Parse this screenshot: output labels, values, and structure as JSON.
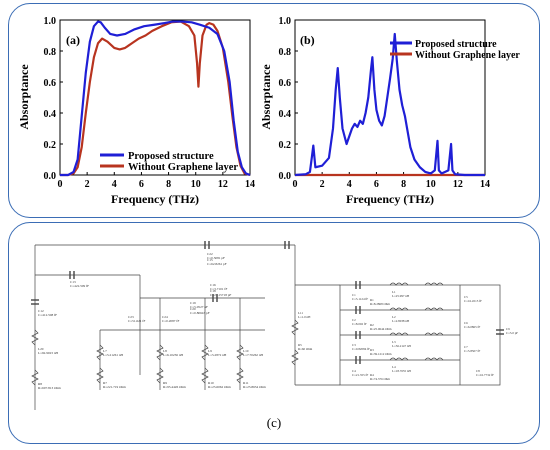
{
  "chart_data": [
    {
      "type": "line",
      "panel_label": "(a)",
      "xlabel": "Frequency (THz)",
      "ylabel": "Absorptance",
      "xlim": [
        0,
        14
      ],
      "ylim": [
        0,
        1.0
      ],
      "x_ticks": [
        "0",
        "2",
        "4",
        "6",
        "8",
        "10",
        "12",
        "14"
      ],
      "y_ticks": [
        "0.0",
        "0.2",
        "0.4",
        "0.6",
        "0.8",
        "1.0"
      ],
      "legend_position": "bottom-center",
      "series": [
        {
          "name": "Proposed structure",
          "color": "#1f1fd6",
          "x": [
            0,
            0.6,
            1.0,
            1.3,
            1.6,
            1.9,
            2.2,
            2.5,
            2.8,
            3.0,
            3.3,
            3.7,
            4.2,
            4.8,
            5.5,
            6.2,
            7.0,
            7.7,
            8.3,
            9.0,
            9.7,
            10.3,
            11.0,
            11.6,
            12.1,
            12.5,
            12.8,
            13.1,
            13.4,
            13.7,
            14.0
          ],
          "y": [
            0.0,
            0.0,
            0.02,
            0.1,
            0.38,
            0.66,
            0.86,
            0.96,
            0.99,
            0.985,
            0.95,
            0.91,
            0.9,
            0.91,
            0.94,
            0.96,
            0.97,
            0.98,
            0.99,
            0.99,
            0.985,
            0.97,
            0.95,
            0.91,
            0.8,
            0.6,
            0.35,
            0.15,
            0.05,
            0.01,
            0.0
          ]
        },
        {
          "name": "Without Graphene layer",
          "color": "#b8341f",
          "x": [
            0,
            0.6,
            1.0,
            1.3,
            1.6,
            1.9,
            2.2,
            2.5,
            2.8,
            3.1,
            3.5,
            4.0,
            4.4,
            4.8,
            5.3,
            5.8,
            6.3,
            6.8,
            7.5,
            8.2,
            8.9,
            9.5,
            9.9,
            10.1,
            10.2,
            10.3,
            10.5,
            10.8,
            11.0,
            11.3,
            11.6,
            12.0,
            12.4,
            12.7,
            13.0,
            13.3,
            13.6,
            14.0
          ],
          "y": [
            0.0,
            0.0,
            0.01,
            0.05,
            0.18,
            0.4,
            0.6,
            0.76,
            0.85,
            0.88,
            0.86,
            0.82,
            0.81,
            0.82,
            0.85,
            0.88,
            0.9,
            0.93,
            0.96,
            0.985,
            0.99,
            0.96,
            0.9,
            0.72,
            0.57,
            0.72,
            0.9,
            0.97,
            0.98,
            0.97,
            0.93,
            0.82,
            0.6,
            0.38,
            0.18,
            0.06,
            0.01,
            0.0
          ]
        }
      ]
    },
    {
      "type": "line",
      "panel_label": "(b)",
      "xlabel": "Frequency (THz)",
      "ylabel": "Absorptance",
      "xlim": [
        0,
        14
      ],
      "ylim": [
        0,
        1.0
      ],
      "x_ticks": [
        "0",
        "2",
        "4",
        "6",
        "8",
        "10",
        "12",
        "14"
      ],
      "y_ticks": [
        "0.0",
        "0.2",
        "0.4",
        "0.6",
        "0.8",
        "1.0"
      ],
      "legend_position": "top-right",
      "series": [
        {
          "name": "Proposed structure",
          "color": "#1f1fd6",
          "x": [
            0,
            0.8,
            1.1,
            1.25,
            1.35,
            1.5,
            2.0,
            2.5,
            2.8,
            3.0,
            3.15,
            3.3,
            3.5,
            3.8,
            4.0,
            4.2,
            4.4,
            4.6,
            4.8,
            5.0,
            5.2,
            5.4,
            5.6,
            5.7,
            5.85,
            6.0,
            6.2,
            6.4,
            6.6,
            6.8,
            7.0,
            7.2,
            7.35,
            7.5,
            7.7,
            7.9,
            8.1,
            8.3,
            8.5,
            8.8,
            9.2,
            9.6,
            10.0,
            10.3,
            10.5,
            10.6,
            10.8,
            11.3,
            11.5,
            11.6,
            11.8,
            12.5,
            14.0
          ],
          "y": [
            0.0,
            0.005,
            0.02,
            0.12,
            0.19,
            0.05,
            0.06,
            0.11,
            0.3,
            0.55,
            0.69,
            0.5,
            0.3,
            0.2,
            0.25,
            0.3,
            0.33,
            0.31,
            0.35,
            0.33,
            0.4,
            0.5,
            0.68,
            0.76,
            0.55,
            0.42,
            0.35,
            0.32,
            0.38,
            0.5,
            0.62,
            0.75,
            0.91,
            0.74,
            0.55,
            0.45,
            0.38,
            0.28,
            0.18,
            0.1,
            0.05,
            0.02,
            0.01,
            0.03,
            0.22,
            0.03,
            0.01,
            0.03,
            0.2,
            0.03,
            0.005,
            0.0,
            0.0
          ]
        },
        {
          "name": "Without Graphene layer",
          "color": "#b8341f",
          "x": [
            0,
            14
          ],
          "y": [
            0.0,
            0.0
          ]
        }
      ]
    }
  ],
  "panel_c_label": "(c)",
  "circuit": {
    "source_components": [
      {
        "ref": "C22",
        "value": "C=0.5081 pF"
      },
      {
        "ref": "C15",
        "value": "C=62.8261 pF"
      },
      {
        "ref": "C13",
        "value": "C=422.509 fF"
      },
      {
        "ref": "C12",
        "value": "C=412.508 fF"
      },
      {
        "ref": "L20",
        "value": "L=92.9023 nH"
      },
      {
        "ref": "R8",
        "value": "R=607.813 Ohm"
      },
      {
        "ref": "C23",
        "value": "C=51.621 fF"
      },
      {
        "ref": "L7",
        "value": "L=5.21261 nH"
      },
      {
        "ref": "R7",
        "value": "R=221.719 Ohm"
      },
      {
        "ref": "C16",
        "value": "C=3.7101 fF"
      },
      {
        "ref": "C18",
        "value": "C=21.15718 pF"
      },
      {
        "ref": "C19",
        "value": "C=5.0527 nF"
      },
      {
        "ref": "C20",
        "value": "C=0.80643 pF"
      },
      {
        "ref": "C24",
        "value": "C=0.2087 fF"
      },
      {
        "ref": "L8",
        "value": "L=6.10236 nH"
      },
      {
        "ref": "R9",
        "value": "R=95.4426 Ohm"
      },
      {
        "ref": "L9",
        "value": "L=5.2872 nH"
      },
      {
        "ref": "R10",
        "value": "R=25.6062 Ohm"
      },
      {
        "ref": "L10",
        "value": "L=7.70262 nH"
      },
      {
        "ref": "R11",
        "value": "R=25.8634 Ohm"
      }
    ],
    "load_components": [
      {
        "ref": "C1",
        "value": "C=5.1124 fF"
      },
      {
        "ref": "L1",
        "value": "L=25.997 nH"
      },
      {
        "ref": "R1",
        "value": "R=8.2868 Ohm"
      },
      {
        "ref": "C2",
        "value": "C=8.002 fF"
      },
      {
        "ref": "L2",
        "value": "L=2.8038 nH"
      },
      {
        "ref": "R2",
        "value": "R=25.0644 Ohm"
      },
      {
        "ref": "C3",
        "value": "C=0.82084 fF"
      },
      {
        "ref": "L3",
        "value": "L=56.2147 nH"
      },
      {
        "ref": "R3",
        "value": "R=39.1212 Ohm"
      },
      {
        "ref": "C4",
        "value": "C=21.355 fF"
      },
      {
        "ref": "L4",
        "value": "L=18.7655 nH"
      },
      {
        "ref": "R4",
        "value": "R=74.376 Ohm"
      },
      {
        "ref": "C5",
        "value": "C=16.4515 fF"
      },
      {
        "ref": "C6",
        "value": "C=6.0865 fF"
      },
      {
        "ref": "C7",
        "value": "C=5.8507 fF"
      },
      {
        "ref": "C8",
        "value": "C=16.7732 fF"
      },
      {
        "ref": "L11",
        "value": "L=1.0 nH"
      },
      {
        "ref": "R5",
        "value": "R=60 Ohm"
      },
      {
        "ref": "C9",
        "value": "C=5.0 pF"
      }
    ]
  }
}
